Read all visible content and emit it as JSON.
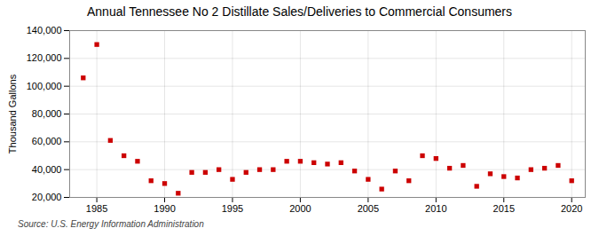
{
  "chart_data": {
    "type": "scatter",
    "title": "Annual Tennessee No 2 Distillate Sales/Deliveries to Commercial Consumers",
    "ylabel": "Thousand Gallons",
    "source": "Source: U.S. Energy Information Administration",
    "x": [
      1984,
      1985,
      1986,
      1987,
      1988,
      1989,
      1990,
      1991,
      1992,
      1993,
      1994,
      1995,
      1996,
      1997,
      1998,
      1999,
      2000,
      2001,
      2002,
      2003,
      2004,
      2005,
      2006,
      2007,
      2008,
      2009,
      2010,
      2011,
      2012,
      2013,
      2014,
      2015,
      2016,
      2017,
      2018,
      2019,
      2020
    ],
    "values": [
      106000,
      130000,
      61000,
      50000,
      46000,
      32000,
      30000,
      23000,
      38000,
      38000,
      40000,
      33000,
      38000,
      40000,
      40000,
      46000,
      46000,
      45000,
      44000,
      45000,
      39000,
      33000,
      26000,
      39000,
      32000,
      50000,
      48000,
      41000,
      43000,
      28000,
      37000,
      35000,
      34000,
      40000,
      41000,
      43000,
      32000
    ],
    "color": "#cc0000",
    "marker": "square",
    "xlim": [
      1983,
      2021
    ],
    "xticks": [
      1985,
      1990,
      1995,
      2000,
      2005,
      2010,
      2015,
      2020
    ],
    "ylim": [
      20000,
      140000
    ],
    "yticks": [
      {
        "value": 20000,
        "label": "20,000"
      },
      {
        "value": 40000,
        "label": "40,000"
      },
      {
        "value": 60000,
        "label": "60,000"
      },
      {
        "value": 80000,
        "label": "80,000"
      },
      {
        "value": 100000,
        "label": "100,000"
      },
      {
        "value": 120000,
        "label": "120,000"
      },
      {
        "value": 140000,
        "label": "140,000"
      }
    ],
    "grid": true
  }
}
